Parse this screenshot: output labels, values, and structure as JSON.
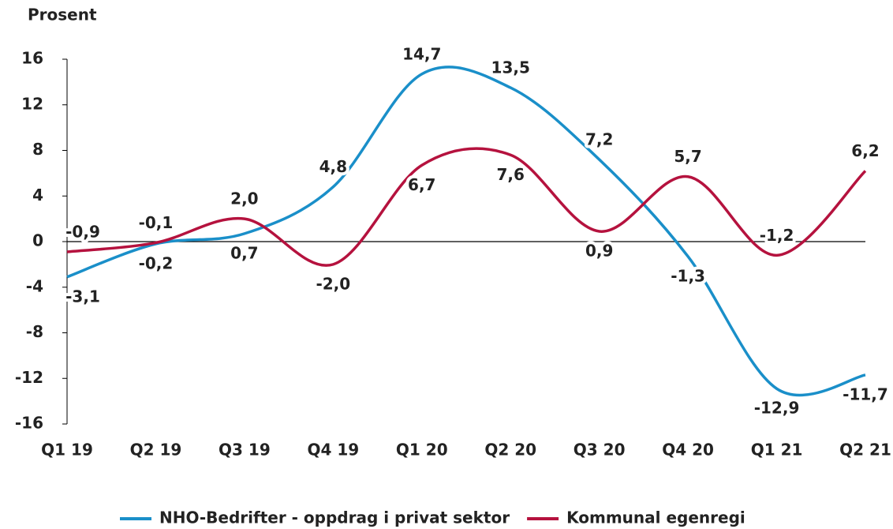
{
  "chart_data": {
    "type": "line",
    "y_axis_label": "Prosent",
    "categories": [
      "Q1 19",
      "Q2 19",
      "Q3 19",
      "Q4 19",
      "Q1 20",
      "Q2 20",
      "Q3 20",
      "Q4 20",
      "Q1 21",
      "Q2 21"
    ],
    "series": [
      {
        "name": "NHO-Bedrifter - oppdrag i privat sektor",
        "color": "#1a8fc9",
        "values": [
          -3.1,
          -0.2,
          0.7,
          4.8,
          14.7,
          13.5,
          7.2,
          -1.3,
          -12.9,
          -11.7
        ],
        "value_labels": [
          "-3,1",
          "-0,2",
          "0,7",
          "4,8",
          "14,7",
          "13,5",
          "7,2",
          "-1,3",
          "-12,9",
          "-11,7"
        ]
      },
      {
        "name": "Kommunal egenregi",
        "color": "#b5123e",
        "values": [
          -0.9,
          -0.1,
          2.0,
          -2.0,
          6.7,
          7.6,
          0.9,
          5.7,
          -1.2,
          6.2
        ],
        "value_labels": [
          "-0,9",
          "-0,1",
          "2,0",
          "-2,0",
          "6,7",
          "7,6",
          "0,9",
          "5,7",
          "-1,2",
          "6,2"
        ]
      }
    ],
    "ylim": [
      -16,
      16
    ],
    "yticks": [
      -16,
      -12,
      -8,
      -4,
      0,
      4,
      8,
      12,
      16
    ],
    "smooth": true
  }
}
